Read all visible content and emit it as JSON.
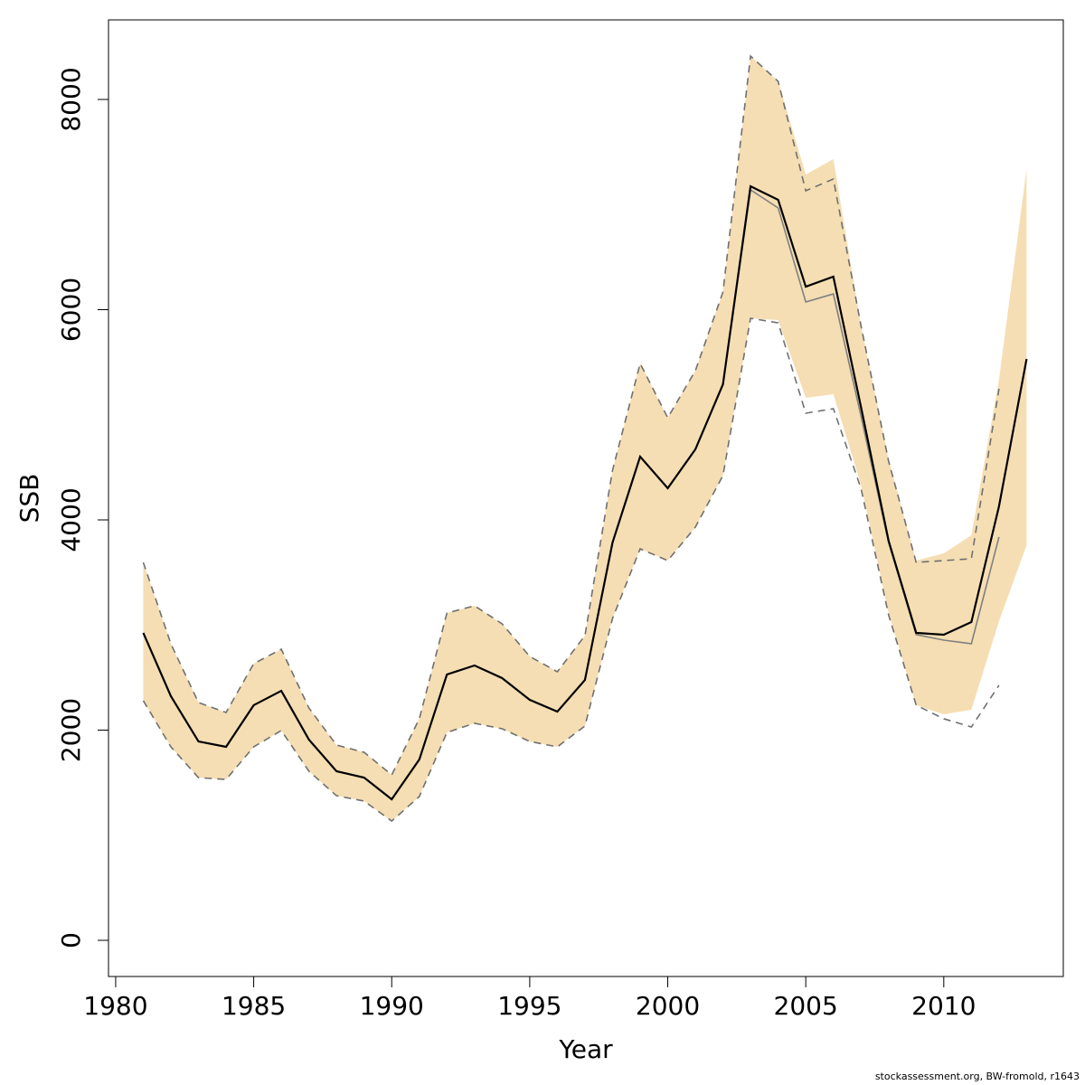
{
  "chart_data": {
    "type": "line",
    "xlabel": "Year",
    "ylabel": "SSB",
    "footer": "stockassessment.org, BW-fromold, r1643",
    "x": [
      1981,
      1982,
      1983,
      1984,
      1985,
      1986,
      1987,
      1988,
      1989,
      1990,
      1991,
      1992,
      1993,
      1994,
      1995,
      1996,
      1997,
      1998,
      1999,
      2000,
      2001,
      2002,
      2003,
      2004,
      2005,
      2006,
      2007,
      2008,
      2009,
      2010,
      2011,
      2012,
      2013
    ],
    "xlim": [
      1979.74,
      2014.33
    ],
    "xticks": [
      1980,
      1985,
      1990,
      1995,
      2000,
      2005,
      2010
    ],
    "ylim": [
      -344,
      8757
    ],
    "yticks": [
      0,
      2000,
      4000,
      6000,
      8000
    ],
    "band": {
      "color": "#f5deb3",
      "upper": [
        3596,
        2821,
        2262,
        2168,
        2632,
        2770,
        2211,
        1858,
        1789,
        1574,
        2108,
        3114,
        3183,
        3011,
        2701,
        2555,
        2899,
        4473,
        5488,
        4972,
        5419,
        6168,
        8413,
        8172,
        7286,
        7432,
        5849,
        4576,
        3613,
        3682,
        3854,
        5333,
        7338
      ],
      "lower": [
        2280,
        1841,
        1548,
        1531,
        1841,
        1996,
        1609,
        1376,
        1325,
        1135,
        1368,
        1978,
        2065,
        2013,
        1892,
        1841,
        2039,
        3062,
        3725,
        3613,
        3931,
        4422,
        5918,
        5901,
        5161,
        5196,
        4335,
        3114,
        2237,
        2151,
        2194,
        3037,
        3759
      ]
    },
    "series": [
      {
        "color": "#000000",
        "style": "solid",
        "width": 2.2,
        "values": [
          2925,
          2323,
          1892,
          1841,
          2237,
          2374,
          1910,
          1609,
          1548,
          1342,
          1720,
          2529,
          2615,
          2495,
          2288,
          2176,
          2477,
          3785,
          4602,
          4301,
          4671,
          5290,
          7174,
          7045,
          6219,
          6314,
          5075,
          3802,
          2925,
          2908,
          3028,
          4129,
          5531
        ]
      },
      {
        "color": "#808080",
        "style": "solid",
        "width": 1.6,
        "values": [
          2925,
          2323,
          1892,
          1841,
          2237,
          2374,
          1910,
          1609,
          1548,
          1342,
          1720,
          2529,
          2615,
          2495,
          2288,
          2176,
          2477,
          3785,
          4602,
          4301,
          4671,
          5290,
          7140,
          6968,
          6073,
          6150,
          4989,
          3785,
          2908,
          2856,
          2822,
          3837,
          null
        ]
      },
      {
        "color": "#707070",
        "style": "dashed",
        "width": 1.6,
        "values": [
          3596,
          2821,
          2262,
          2168,
          2632,
          2770,
          2211,
          1858,
          1789,
          1574,
          2108,
          3114,
          3183,
          3011,
          2701,
          2555,
          2899,
          4473,
          5488,
          4972,
          5419,
          6168,
          8413,
          8172,
          7131,
          7243,
          5849,
          4559,
          3596,
          3613,
          3630,
          5247,
          null
        ]
      },
      {
        "color": "#707070",
        "style": "dashed",
        "width": 1.6,
        "values": [
          2280,
          1841,
          1548,
          1531,
          1841,
          1996,
          1609,
          1376,
          1325,
          1135,
          1368,
          1978,
          2065,
          2013,
          1892,
          1841,
          2039,
          3062,
          3725,
          3613,
          3931,
          4422,
          5918,
          5875,
          5015,
          5058,
          4301,
          3097,
          2237,
          2108,
          2030,
          2426,
          null
        ]
      }
    ]
  }
}
